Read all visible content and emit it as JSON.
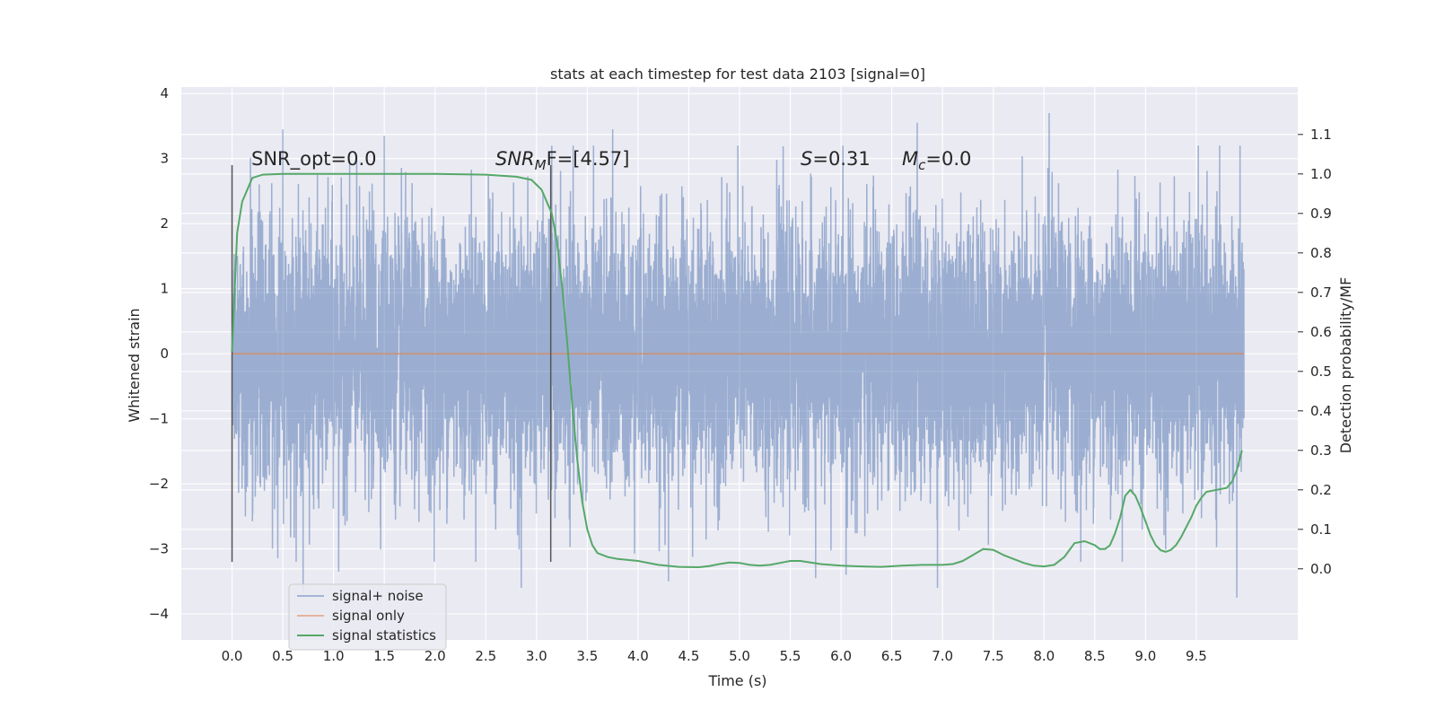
{
  "chart_data": {
    "type": "line",
    "title": "stats at each timestep for test data 2103 [signal=0]",
    "xlabel": "Time (s)",
    "ylabel": "Whitened strain",
    "y2label": "Detection probability/MF",
    "xlim": [
      -0.5,
      10.5
    ],
    "ylim": [
      -4.4,
      4.1
    ],
    "y2lim": [
      -0.18,
      1.22
    ],
    "xticks": [
      "0.0",
      "0.5",
      "1.0",
      "1.5",
      "2.0",
      "2.5",
      "3.0",
      "3.5",
      "4.0",
      "4.5",
      "5.0",
      "5.5",
      "6.0",
      "6.5",
      "7.0",
      "7.5",
      "8.0",
      "8.5",
      "9.0",
      "9.5"
    ],
    "yticks": [
      "4",
      "3",
      "2",
      "1",
      "0",
      "−1",
      "−2",
      "−3",
      "−4"
    ],
    "y2ticks": [
      "1.1",
      "1.0",
      "0.9",
      "0.8",
      "0.7",
      "0.6",
      "0.5",
      "0.4",
      "0.3",
      "0.2",
      "0.1",
      "0.0"
    ],
    "grid": true,
    "legend_position": "lower-left",
    "colors": {
      "background": "#eaeaf2",
      "grid": "#ffffff",
      "noise": "#4c72b0",
      "signal": "#dd8452",
      "stats": "#55a868",
      "markers": "#555555"
    },
    "annotations": [
      {
        "text": "SNR_opt=0.0"
      },
      {
        "main": "SNR",
        "sub": "M",
        "rest": "F=[4.57]"
      },
      {
        "main": "S",
        "rest": "=0.31"
      },
      {
        "main": "M",
        "sub": "c",
        "rest": "=0.0"
      }
    ],
    "vertical_markers_x": [
      0.0,
      3.14
    ],
    "series": [
      {
        "name": "signal+ noise",
        "t_start": 0.0,
        "t_end": 9.97,
        "n_points": 8192,
        "amplitude_std": 1.0,
        "extremes": [
          {
            "x": 0.5,
            "y": 3.45
          },
          {
            "x": 0.7,
            "y": -3.65
          },
          {
            "x": 1.05,
            "y": -3.35
          },
          {
            "x": 1.5,
            "y": 3.35
          },
          {
            "x": 2.85,
            "y": -3.6
          },
          {
            "x": 3.75,
            "y": 3.45
          },
          {
            "x": 4.3,
            "y": -3.5
          },
          {
            "x": 5.75,
            "y": -3.45
          },
          {
            "x": 6.05,
            "y": -3.4
          },
          {
            "x": 6.75,
            "y": 3.55
          },
          {
            "x": 6.95,
            "y": -3.6
          },
          {
            "x": 8.05,
            "y": 3.7
          },
          {
            "x": 9.9,
            "y": -3.75
          }
        ]
      },
      {
        "name": "signal only",
        "x": [
          0.0,
          9.97
        ],
        "y": [
          0.0,
          0.0
        ]
      },
      {
        "name": "signal statistics",
        "x": [
          0.0,
          0.05,
          0.1,
          0.2,
          0.3,
          0.5,
          1.0,
          1.5,
          2.0,
          2.5,
          2.8,
          2.95,
          3.05,
          3.1,
          3.15,
          3.2,
          3.25,
          3.3,
          3.35,
          3.4,
          3.45,
          3.5,
          3.55,
          3.6,
          3.7,
          3.8,
          4.0,
          4.2,
          4.4,
          4.6,
          4.7,
          4.8,
          4.9,
          5.0,
          5.1,
          5.2,
          5.3,
          5.4,
          5.5,
          5.6,
          5.8,
          6.0,
          6.2,
          6.4,
          6.6,
          6.8,
          7.0,
          7.1,
          7.2,
          7.3,
          7.4,
          7.5,
          7.6,
          7.7,
          7.8,
          7.9,
          8.0,
          8.1,
          8.2,
          8.3,
          8.4,
          8.5,
          8.55,
          8.6,
          8.65,
          8.7,
          8.75,
          8.8,
          8.85,
          8.9,
          8.95,
          9.0,
          9.05,
          9.1,
          9.15,
          9.2,
          9.25,
          9.3,
          9.35,
          9.4,
          9.45,
          9.5,
          9.55,
          9.6,
          9.7,
          9.8,
          9.85,
          9.9,
          9.95
        ],
        "y": [
          0.55,
          0.85,
          0.93,
          0.99,
          0.998,
          1.0,
          1.0,
          1.0,
          1.0,
          0.998,
          0.993,
          0.985,
          0.96,
          0.93,
          0.9,
          0.83,
          0.72,
          0.58,
          0.42,
          0.28,
          0.17,
          0.1,
          0.06,
          0.04,
          0.03,
          0.025,
          0.02,
          0.01,
          0.005,
          0.004,
          0.007,
          0.012,
          0.016,
          0.015,
          0.01,
          0.008,
          0.01,
          0.015,
          0.02,
          0.02,
          0.012,
          0.008,
          0.006,
          0.005,
          0.008,
          0.01,
          0.01,
          0.012,
          0.02,
          0.035,
          0.05,
          0.048,
          0.035,
          0.025,
          0.015,
          0.008,
          0.006,
          0.01,
          0.03,
          0.065,
          0.07,
          0.06,
          0.05,
          0.05,
          0.06,
          0.09,
          0.13,
          0.185,
          0.2,
          0.185,
          0.155,
          0.12,
          0.085,
          0.06,
          0.047,
          0.043,
          0.048,
          0.06,
          0.08,
          0.105,
          0.13,
          0.16,
          0.18,
          0.195,
          0.2,
          0.205,
          0.22,
          0.25,
          0.3
        ]
      }
    ]
  }
}
